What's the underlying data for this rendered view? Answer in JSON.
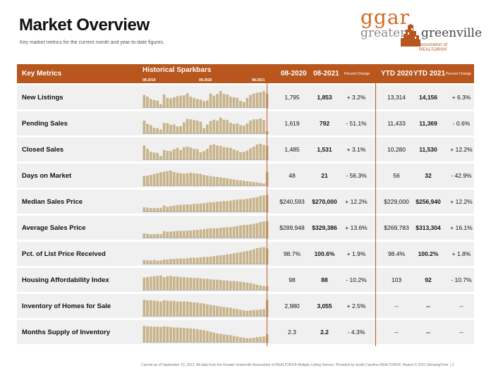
{
  "page": {
    "title": "Market Overview",
    "subtitle": "Key market metrics for the current month and year-to-date figures.",
    "footer": "Current as of September 10, 2021. All data from the Greater Greenville Association of REALTORS® Multiple Listing Service. Provided by South Carolina REALTORS®. Report © 2021 ShowingTime.  |  2"
  },
  "logo": {
    "line1": "ggar",
    "line2": "greater",
    "line3": "greenville",
    "line4": "association of REALTORS®"
  },
  "colors": {
    "accent": "#b8561e",
    "row_bg": "#f0f0f0",
    "bar": "#c8b48a",
    "baseline": "#777777"
  },
  "header": {
    "key_metrics": "Key Metrics",
    "sparkbars": "Historical Sparkbars",
    "spark_ticks": [
      "08-2019",
      "08-2020",
      "08-2021"
    ],
    "col_08_2020": "08-2020",
    "col_08_2021": "08-2021",
    "percent_change": "Percent Change",
    "ytd_2020": "YTD 2020",
    "ytd_2021": "YTD 2021",
    "percent_change_ytd": "Percent Change"
  },
  "rows": [
    {
      "label": "New Listings",
      "v2020": "1,795",
      "v2021": "1,853",
      "pct": "+ 3.2%",
      "ytd2020": "13,314",
      "ytd2021": "14,156",
      "ytdpct": "+ 6.3%",
      "spark": [
        0.72,
        0.62,
        0.48,
        0.42,
        0.38,
        0.18,
        0.75,
        0.55,
        0.52,
        0.58,
        0.65,
        0.68,
        0.7,
        0.82,
        0.62,
        0.55,
        0.48,
        0.45,
        0.35,
        0.4,
        0.8,
        0.68,
        0.78,
        0.95,
        0.78,
        0.75,
        0.62,
        0.58,
        0.55,
        0.38,
        0.3,
        0.55,
        0.72,
        0.8,
        0.85,
        0.88,
        0.95,
        0.8
      ]
    },
    {
      "label": "Pending Sales",
      "v2020": "1,619",
      "v2021": "792",
      "pct": "- 51.1%",
      "ytd2020": "11,433",
      "ytd2021": "11,369",
      "ytdpct": "- 0.6%",
      "spark": [
        0.75,
        0.55,
        0.48,
        0.32,
        0.3,
        0.22,
        0.62,
        0.6,
        0.5,
        0.52,
        0.4,
        0.42,
        0.65,
        0.85,
        0.82,
        0.78,
        0.75,
        0.68,
        0.3,
        0.52,
        0.72,
        0.8,
        0.75,
        0.92,
        0.8,
        0.78,
        0.62,
        0.55,
        0.58,
        0.48,
        0.45,
        0.58,
        0.75,
        0.82,
        0.82,
        0.88,
        0.78,
        0.12
      ]
    },
    {
      "label": "Closed Sales",
      "v2020": "1,485",
      "v2021": "1,531",
      "pct": "+ 3.1%",
      "ytd2020": "10,280",
      "ytd2021": "11,530",
      "ytdpct": "+ 12.2%",
      "spark": [
        0.82,
        0.62,
        0.45,
        0.4,
        0.38,
        0.2,
        0.55,
        0.5,
        0.48,
        0.6,
        0.68,
        0.55,
        0.72,
        0.75,
        0.7,
        0.62,
        0.6,
        0.42,
        0.48,
        0.62,
        0.85,
        0.88,
        0.82,
        0.8,
        0.72,
        0.7,
        0.68,
        0.58,
        0.52,
        0.42,
        0.45,
        0.52,
        0.65,
        0.75,
        0.88,
        0.92,
        0.85,
        0.8
      ]
    },
    {
      "label": "Days on Market",
      "v2020": "48",
      "v2021": "21",
      "pct": "- 56.3%",
      "ytd2020": "56",
      "ytd2021": "32",
      "ytdpct": "- 42.9%",
      "spark": [
        0.55,
        0.58,
        0.62,
        0.68,
        0.72,
        0.78,
        0.82,
        0.85,
        0.88,
        0.8,
        0.75,
        0.72,
        0.7,
        0.72,
        0.75,
        0.72,
        0.7,
        0.68,
        0.62,
        0.58,
        0.55,
        0.52,
        0.5,
        0.48,
        0.45,
        0.42,
        0.38,
        0.35,
        0.32,
        0.3,
        0.28,
        0.25,
        0.22,
        0.2,
        0.18,
        0.15,
        0.12,
        0.8
      ]
    },
    {
      "label": "Median Sales Price",
      "v2020": "$240,593",
      "v2021": "$270,000",
      "pct": "+ 12.2%",
      "ytd2020": "$229,000",
      "ytd2021": "$256,940",
      "ytdpct": "+ 12.2%",
      "spark": [
        0.25,
        0.22,
        0.2,
        0.2,
        0.2,
        0.22,
        0.35,
        0.28,
        0.32,
        0.35,
        0.38,
        0.4,
        0.4,
        0.42,
        0.42,
        0.45,
        0.45,
        0.48,
        0.5,
        0.52,
        0.55,
        0.55,
        0.58,
        0.6,
        0.62,
        0.62,
        0.65,
        0.68,
        0.7,
        0.72,
        0.72,
        0.75,
        0.78,
        0.82,
        0.85,
        0.92,
        0.95,
        0.98
      ]
    },
    {
      "label": "Average Sales Price",
      "v2020": "$289,948",
      "v2021": "$329,386",
      "pct": "+ 13.6%",
      "ytd2020": "$269,783",
      "ytd2021": "$313,304",
      "ytdpct": "+ 16.1%",
      "spark": [
        0.25,
        0.22,
        0.2,
        0.2,
        0.22,
        0.2,
        0.38,
        0.35,
        0.35,
        0.38,
        0.4,
        0.4,
        0.4,
        0.42,
        0.42,
        0.45,
        0.45,
        0.48,
        0.5,
        0.52,
        0.55,
        0.55,
        0.55,
        0.58,
        0.6,
        0.62,
        0.62,
        0.65,
        0.68,
        0.72,
        0.75,
        0.75,
        0.78,
        0.82,
        0.85,
        0.92,
        0.95,
        0.98
      ]
    },
    {
      "label": "Pct. of List Price Received",
      "v2020": "98.7%",
      "v2021": "100.6%",
      "pct": "+ 1.9%",
      "ytd2020": "98.4%",
      "ytd2021": "100.2%",
      "ytdpct": "+ 1.8%",
      "spark": [
        0.22,
        0.2,
        0.2,
        0.22,
        0.18,
        0.2,
        0.25,
        0.25,
        0.28,
        0.28,
        0.3,
        0.3,
        0.3,
        0.32,
        0.35,
        0.35,
        0.35,
        0.38,
        0.4,
        0.4,
        0.42,
        0.45,
        0.48,
        0.5,
        0.52,
        0.55,
        0.58,
        0.62,
        0.65,
        0.68,
        0.72,
        0.75,
        0.8,
        0.85,
        0.92,
        0.95,
        0.98,
        0.9
      ]
    },
    {
      "label": "Housing Affordability Index",
      "v2020": "98",
      "v2021": "88",
      "pct": "- 10.2%",
      "ytd2020": "103",
      "ytd2021": "92",
      "ytdpct": "- 10.7%",
      "spark": [
        0.72,
        0.75,
        0.78,
        0.8,
        0.82,
        0.85,
        0.75,
        0.8,
        0.82,
        0.78,
        0.78,
        0.75,
        0.75,
        0.72,
        0.72,
        0.7,
        0.7,
        0.68,
        0.65,
        0.65,
        0.62,
        0.6,
        0.6,
        0.58,
        0.55,
        0.55,
        0.52,
        0.52,
        0.5,
        0.48,
        0.45,
        0.42,
        0.4,
        0.35,
        0.3,
        0.25,
        0.22,
        0.2
      ]
    },
    {
      "label": "Inventory of Homes for Sale",
      "v2020": "2,980",
      "v2021": "3,055",
      "pct": "+ 2.5%",
      "ytd2020": "--",
      "ytd2021": "--",
      "ytdpct": "--",
      "spark": [
        0.95,
        0.92,
        0.92,
        0.9,
        0.88,
        0.85,
        0.92,
        0.9,
        0.88,
        0.88,
        0.85,
        0.85,
        0.85,
        0.85,
        0.82,
        0.8,
        0.78,
        0.75,
        0.72,
        0.68,
        0.65,
        0.62,
        0.58,
        0.55,
        0.52,
        0.5,
        0.48,
        0.42,
        0.4,
        0.35,
        0.32,
        0.3,
        0.32,
        0.35,
        0.35,
        0.38,
        0.4,
        0.95
      ]
    },
    {
      "label": "Months Supply of Inventory",
      "v2020": "2.3",
      "v2021": "2.2",
      "pct": "- 4.3%",
      "ytd2020": "--",
      "ytd2021": "--",
      "ytdpct": "--",
      "spark": [
        0.95,
        0.92,
        0.92,
        0.9,
        0.9,
        0.88,
        0.92,
        0.9,
        0.88,
        0.85,
        0.85,
        0.85,
        0.82,
        0.82,
        0.8,
        0.78,
        0.75,
        0.72,
        0.7,
        0.65,
        0.6,
        0.55,
        0.5,
        0.48,
        0.45,
        0.42,
        0.4,
        0.35,
        0.32,
        0.28,
        0.25,
        0.22,
        0.22,
        0.25,
        0.28,
        0.3,
        0.32,
        0.45
      ]
    }
  ]
}
